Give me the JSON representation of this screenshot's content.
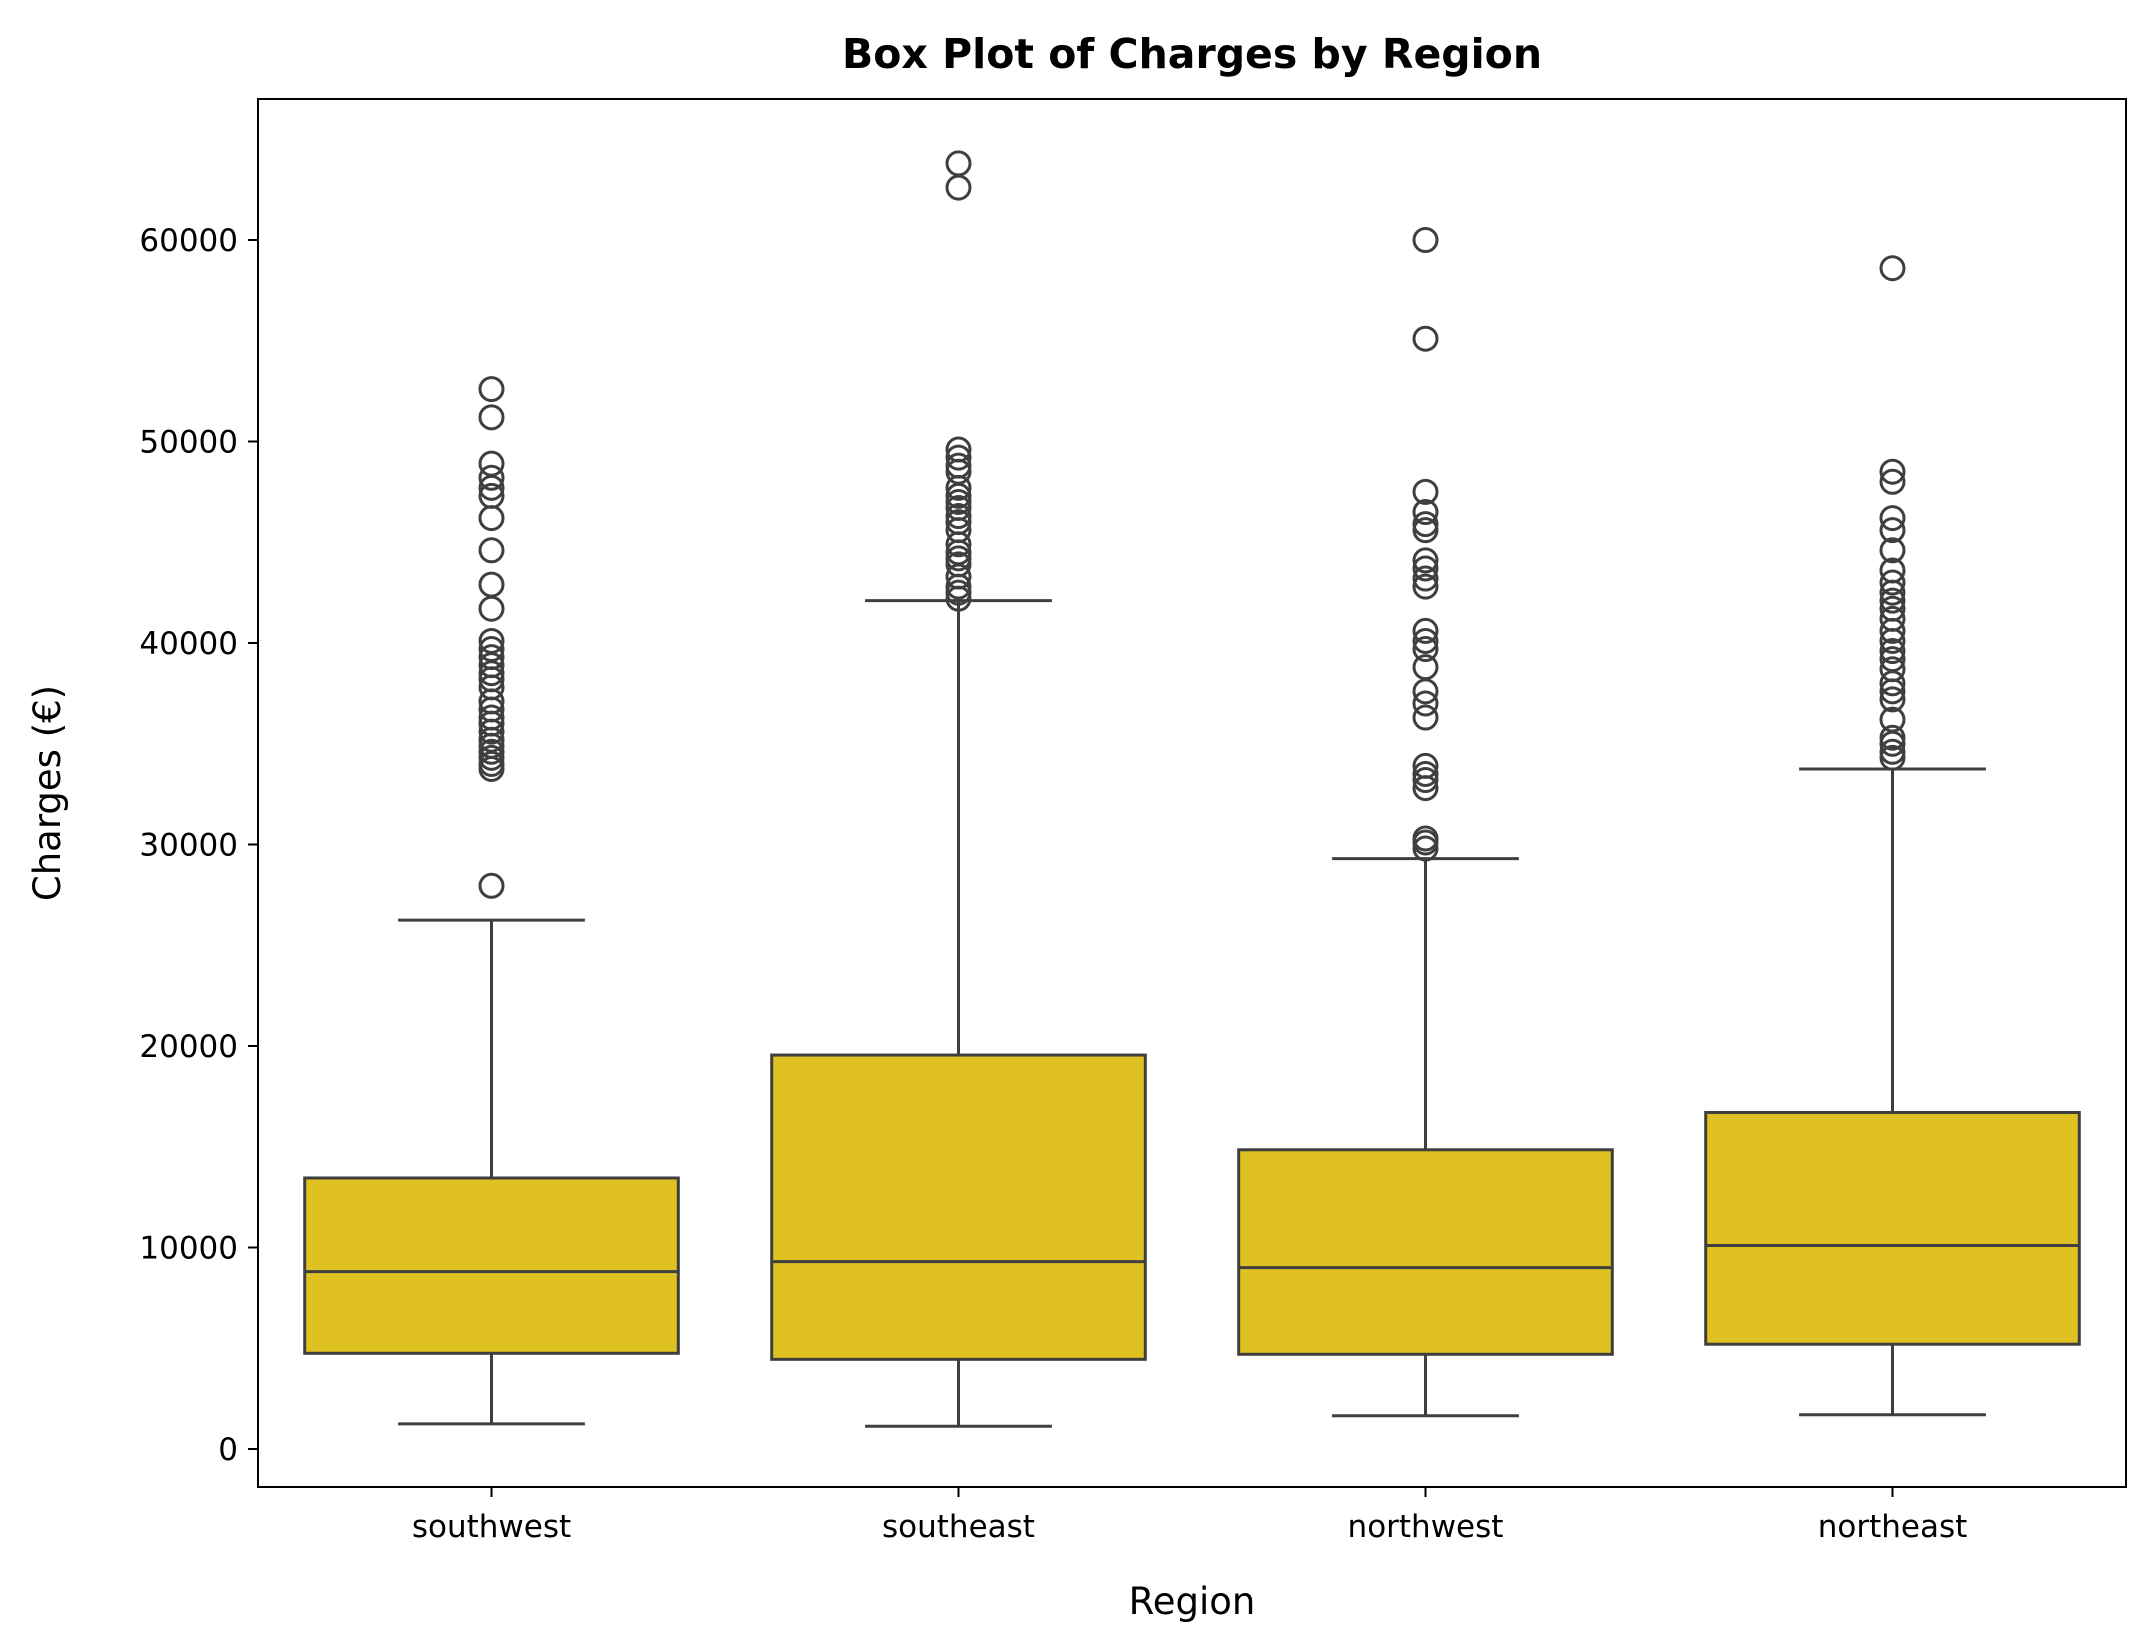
{
  "chart_data": {
    "type": "box",
    "title": "Box Plot of Charges by Region",
    "xlabel": "Region",
    "ylabel": "Charges (€)",
    "categories": [
      "southwest",
      "southeast",
      "northwest",
      "northeast"
    ],
    "ylim": [
      -2000,
      67000
    ],
    "yticks": [
      0,
      10000,
      20000,
      30000,
      40000,
      50000,
      60000
    ],
    "yticklabels": [
      "0",
      "10000",
      "20000",
      "30000",
      "40000",
      "50000",
      "60000"
    ],
    "grid": false,
    "box_color": "#dfc222",
    "line_color": "#3f3f3f",
    "boxes": [
      {
        "category": "southwest",
        "whisker_low": 1250,
        "q1": 4750,
        "median": 8800,
        "q3": 13450,
        "whisker_high": 26250,
        "outliers": [
          27950,
          33750,
          34000,
          34300,
          34600,
          34900,
          35200,
          35600,
          36000,
          36300,
          36700,
          37100,
          37800,
          38200,
          38500,
          38900,
          39300,
          39700,
          40100,
          41700,
          42900,
          44600,
          46200,
          47300,
          47700,
          48200,
          48900,
          51200,
          52600
        ]
      },
      {
        "category": "southeast",
        "whisker_low": 1130,
        "q1": 4450,
        "median": 9300,
        "q3": 19550,
        "whisker_high": 42100,
        "outliers": [
          42200,
          42500,
          42800,
          43300,
          43900,
          44200,
          44500,
          44900,
          45600,
          46000,
          46300,
          46700,
          47000,
          47300,
          47700,
          48500,
          48800,
          49200,
          49600,
          62600,
          63800
        ]
      },
      {
        "category": "northwest",
        "whisker_low": 1650,
        "q1": 4700,
        "median": 9000,
        "q3": 14850,
        "whisker_high": 29300,
        "outliers": [
          29800,
          30100,
          30300,
          32800,
          33200,
          33500,
          33900,
          36300,
          37000,
          37600,
          38800,
          39700,
          40100,
          40600,
          42800,
          43200,
          43700,
          44100,
          45600,
          45900,
          46500,
          47500,
          55100,
          60000
        ]
      },
      {
        "category": "northeast",
        "whisker_low": 1700,
        "q1": 5200,
        "median": 10100,
        "q3": 16700,
        "whisker_high": 33750,
        "outliers": [
          34300,
          34600,
          35000,
          35300,
          36200,
          37200,
          37600,
          38000,
          38700,
          39200,
          39600,
          40100,
          40600,
          41200,
          41700,
          42100,
          42500,
          43000,
          43600,
          44600,
          45600,
          46200,
          48000,
          48500,
          58600
        ]
      }
    ]
  }
}
